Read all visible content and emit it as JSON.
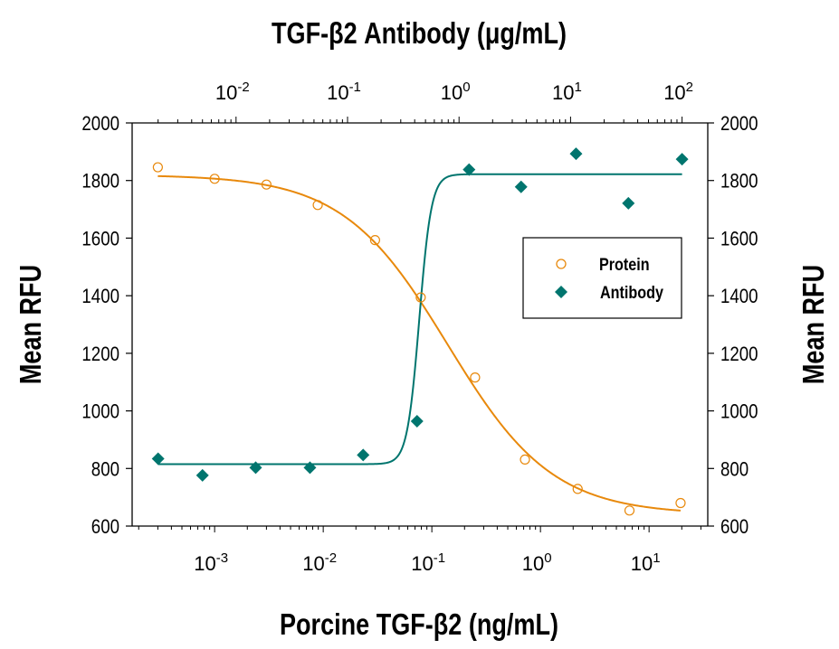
{
  "chart_data": {
    "type": "scatter",
    "title": "",
    "top_xlabel": "TGF-β2 Antibody (μg/mL)",
    "bottom_xlabel": "Porcine TGF-β2 (ng/mL)",
    "left_ylabel": "Mean RFU",
    "right_ylabel": "Mean RFU",
    "x_scale": "log",
    "bottom_xlim": [
      0.000174,
      34.7
    ],
    "top_xlim": [
      0.00117,
      170
    ],
    "ylim": [
      600,
      2000
    ],
    "yticks": [
      "600",
      "800",
      "1000",
      "1200",
      "1400",
      "1600",
      "1800",
      "2000"
    ],
    "bottom_xticks": [
      {
        "base": "10",
        "exp": "-3"
      },
      {
        "base": "10",
        "exp": "-2"
      },
      {
        "base": "10",
        "exp": "-1"
      },
      {
        "base": "10",
        "exp": "0"
      },
      {
        "base": "10",
        "exp": "1"
      }
    ],
    "top_xticks": [
      {
        "base": "10",
        "exp": "-2"
      },
      {
        "base": "10",
        "exp": "-1"
      },
      {
        "base": "10",
        "exp": "0"
      },
      {
        "base": "10",
        "exp": "1"
      },
      {
        "base": "10",
        "exp": "2"
      }
    ],
    "grid": false,
    "legend_position": "center-right",
    "series": [
      {
        "name": "Protein",
        "axis": "bottom",
        "marker": "open-circle",
        "color": "#E8890C",
        "x": [
          0.0003,
          0.001,
          0.003,
          0.0089,
          0.03,
          0.079,
          0.25,
          0.72,
          2.2,
          6.6,
          19.5
        ],
        "y": [
          1846,
          1806,
          1786,
          1715,
          1593,
          1394,
          1116,
          831,
          729,
          654,
          680
        ],
        "fit": {
          "top": 1820,
          "bottom": 640,
          "ec50": 0.14,
          "hill": 0.9
        }
      },
      {
        "name": "Antibody",
        "axis": "top",
        "marker": "filled-diamond",
        "color": "#00756E",
        "x": [
          0.002,
          0.005,
          0.015,
          0.046,
          0.138,
          0.42,
          1.23,
          3.6,
          11.2,
          33,
          100
        ],
        "y": [
          834,
          776,
          803,
          803,
          847,
          964,
          1838,
          1778,
          1893,
          1721,
          1874
        ],
        "fit": {
          "top": 1822,
          "bottom": 815,
          "ec50": 0.44,
          "hill": 8
        }
      }
    ]
  }
}
